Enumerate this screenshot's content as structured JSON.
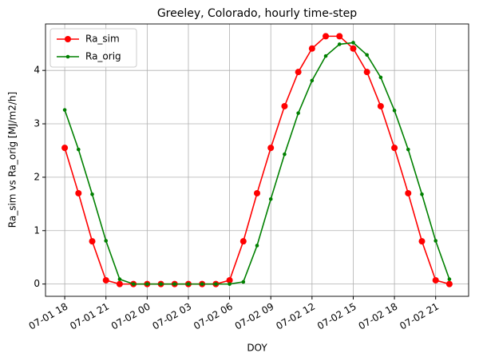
{
  "chart_data": {
    "type": "line",
    "title": "Greeley, Colorado, hourly time-step",
    "x_label": "DOY",
    "y_label": "Ra_sim vs Ra_orig [MJ/m2/h]",
    "x": [
      "07-01 18",
      "07-01 19",
      "07-01 20",
      "07-01 21",
      "07-01 22",
      "07-01 23",
      "07-02 00",
      "07-02 01",
      "07-02 02",
      "07-02 03",
      "07-02 04",
      "07-02 05",
      "07-02 06",
      "07-02 07",
      "07-02 08",
      "07-02 09",
      "07-02 10",
      "07-02 11",
      "07-02 12",
      "07-02 13",
      "07-02 14",
      "07-02 15",
      "07-02 16",
      "07-02 17",
      "07-02 18",
      "07-02 19",
      "07-02 20",
      "07-02 21",
      "07-02 22"
    ],
    "series": [
      {
        "name": "Ra_sim",
        "color": "#ff0000",
        "marker": "circle",
        "values": [
          2.55,
          1.7,
          0.8,
          0.07,
          0,
          0,
          0,
          0,
          0,
          0,
          0,
          0,
          0.07,
          0.8,
          1.7,
          2.55,
          3.33,
          3.97,
          4.41,
          4.64,
          4.64,
          4.41,
          3.97,
          3.33,
          2.55,
          1.7,
          0.8,
          0.07,
          0
        ]
      },
      {
        "name": "Ra_orig",
        "color": "#008000",
        "marker": "dot",
        "values": [
          3.26,
          2.52,
          1.68,
          0.81,
          0.09,
          0,
          0,
          0,
          0,
          0,
          0,
          0,
          0,
          0.04,
          0.72,
          1.59,
          2.43,
          3.2,
          3.81,
          4.27,
          4.49,
          4.52,
          4.29,
          3.87,
          3.25,
          2.52,
          1.68,
          0.81,
          0.09
        ]
      }
    ],
    "xticks": [
      "07-01 18",
      "07-01 21",
      "07-02 00",
      "07-02 03",
      "07-02 06",
      "07-02 09",
      "07-02 12",
      "07-02 15",
      "07-02 18",
      "07-02 21"
    ],
    "ylim": [
      -0.23,
      4.87
    ],
    "yticks": [
      0,
      1,
      2,
      3,
      4
    ],
    "grid": true,
    "legend": "upper left"
  }
}
